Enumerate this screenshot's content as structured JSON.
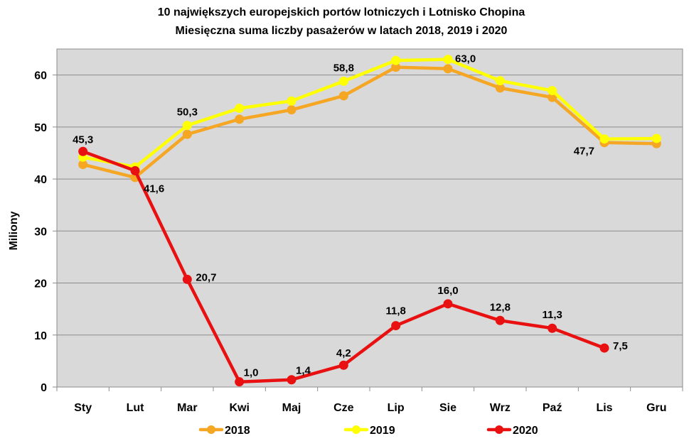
{
  "chart_data": {
    "type": "line",
    "title_line1": "10 największych  europejskich  portów  lotniczych  i  Lotnisko  Chopina",
    "title_line2": "Miesięczna  suma  liczby  pasażerów  w latach  2018, 2019 i 2020",
    "ylabel": "Miliony",
    "xlabel": "",
    "ylim": [
      0,
      65
    ],
    "yticks": [
      0,
      10,
      20,
      30,
      40,
      50,
      60
    ],
    "grid": true,
    "legend_position": "bottom",
    "categories": [
      "Sty",
      "Lut",
      "Mar",
      "Kwi",
      "Maj",
      "Cze",
      "Lip",
      "Sie",
      "Wrz",
      "Paź",
      "Lis",
      "Gru"
    ],
    "series": [
      {
        "name": "2018",
        "color": "#F5A623",
        "values": [
          42.8,
          40.3,
          48.6,
          51.5,
          53.3,
          56.0,
          61.5,
          61.2,
          57.5,
          55.7,
          47.0,
          46.8
        ],
        "labels": {}
      },
      {
        "name": "2019",
        "color": "#FFFF00",
        "values": [
          44.2,
          42.3,
          50.3,
          53.6,
          55.0,
          58.8,
          62.8,
          63.0,
          58.9,
          57.0,
          47.7,
          47.8
        ],
        "labels": {
          "2": "50,3",
          "5": "58,8",
          "7": "63,0",
          "10": "47,7"
        }
      },
      {
        "name": "2020",
        "color": "#E81010",
        "values": [
          45.3,
          41.6,
          20.7,
          1.0,
          1.4,
          4.2,
          11.8,
          16.0,
          12.8,
          11.3,
          7.5,
          null
        ],
        "labels": {
          "0": "45,3",
          "1": "41,6",
          "2": "20,7",
          "3": "1,0",
          "4": "1,4",
          "5": "4,2",
          "6": "11,8",
          "7": "16,0",
          "8": "12,8",
          "9": "11,3",
          "10": "7,5"
        }
      }
    ]
  }
}
